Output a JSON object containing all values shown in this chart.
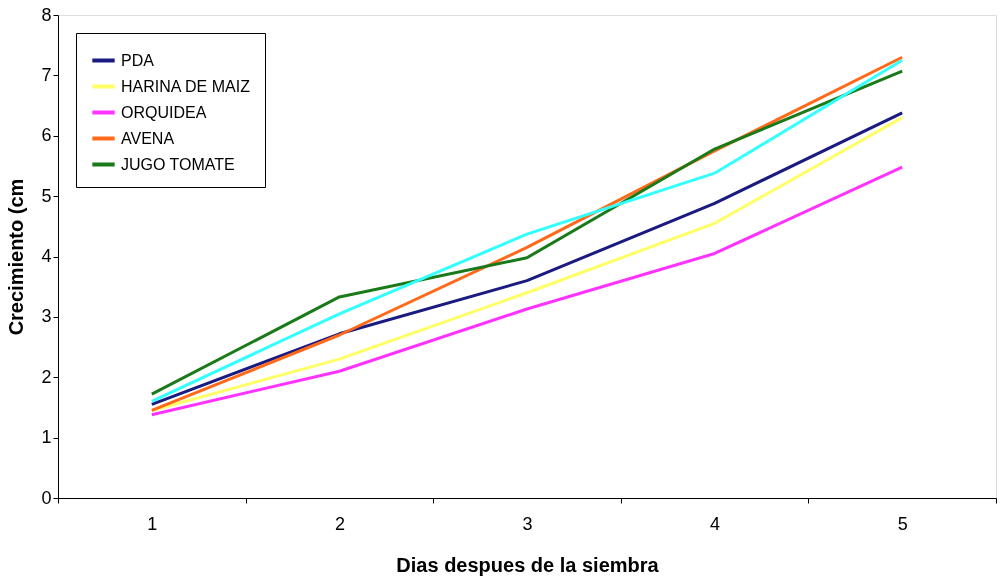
{
  "chart_data": {
    "type": "line",
    "xlabel": "Dias despues de la siembra",
    "ylabel": "Crecimiento (cm",
    "categories": [
      "1",
      "2",
      "3",
      "4",
      "5"
    ],
    "ylim": [
      0,
      8
    ],
    "yticks": [
      0,
      1,
      2,
      3,
      4,
      5,
      6,
      7,
      8
    ],
    "grid": false,
    "legend": "top left",
    "marker": "none",
    "line_style": "solid",
    "series": [
      {
        "name": "PDA",
        "color": "#1a1a80",
        "values": [
          1.55,
          2.72,
          3.6,
          4.88,
          6.38
        ]
      },
      {
        "color": "#33ffff",
        "values": [
          1.6,
          3.05,
          4.37,
          5.38,
          7.25
        ]
      },
      {
        "name": "HARINA DE MAIZ",
        "color": "#ffff66",
        "values": [
          1.45,
          2.3,
          3.4,
          4.55,
          6.3
        ]
      },
      {
        "name": "ORQUIDEA",
        "color": "#ff33ff",
        "values": [
          1.38,
          2.1,
          3.13,
          4.05,
          5.48
        ]
      },
      {
        "name": "AVENA",
        "color": "#ff6a1a",
        "values": [
          1.45,
          2.7,
          4.15,
          5.75,
          7.3
        ]
      },
      {
        "name": "JUGO TOMATE",
        "color": "#1a7a1a",
        "values": [
          1.72,
          3.33,
          3.98,
          5.78,
          7.07
        ]
      }
    ]
  }
}
